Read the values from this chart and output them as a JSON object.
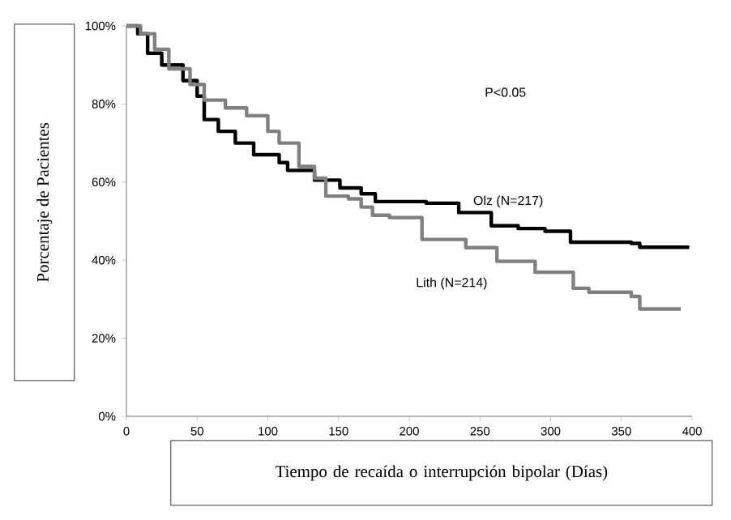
{
  "chart_data": {
    "type": "step",
    "xlabel": "Tiempo de recaída o interrupción bipolar (Días)",
    "ylabel": "Porcentaje de Pacientes",
    "annotations": [
      "P<0.05"
    ],
    "series": [
      {
        "name": "Olz (N=217)",
        "color": "#000000",
        "x": [
          0,
          8,
          15,
          25,
          40,
          50,
          55,
          65,
          77,
          90,
          108,
          114,
          133,
          151,
          166,
          176,
          212,
          235,
          258,
          277,
          296,
          314,
          357,
          363,
          398
        ],
        "values": [
          100,
          98,
          93,
          90,
          86,
          82,
          76,
          73,
          70,
          67,
          65,
          63,
          60.5,
          58.5,
          57,
          55,
          54.6,
          52.2,
          48.8,
          48.1,
          47.4,
          44.6,
          44.3,
          43.3,
          43.3
        ]
      },
      {
        "name": "Lith (N=214)",
        "color": "#808080",
        "x": [
          0,
          10,
          20,
          30,
          45,
          55,
          70,
          85,
          100,
          108,
          122,
          133,
          141,
          157,
          166,
          174,
          186,
          209,
          240,
          262,
          289,
          316,
          327,
          357,
          363,
          392
        ],
        "values": [
          100,
          98,
          94,
          89,
          85,
          81,
          79,
          77,
          73,
          70,
          64,
          61,
          56.4,
          55.7,
          53.6,
          51.5,
          50.9,
          45.3,
          43.2,
          39.7,
          36.9,
          32.8,
          31.8,
          30.7,
          27.5,
          27.5
        ]
      }
    ],
    "xlim": [
      0,
      400
    ],
    "xticks": [
      0,
      50,
      100,
      150,
      200,
      250,
      300,
      350,
      400
    ],
    "ylim": [
      0,
      100
    ],
    "yticks": [
      {
        "value": 0,
        "label": "0%"
      },
      {
        "value": 20,
        "label": "20%"
      },
      {
        "value": 40,
        "label": "40%"
      },
      {
        "value": 60,
        "label": "60%"
      },
      {
        "value": 80,
        "label": "80%"
      },
      {
        "value": 100,
        "label": "100%"
      }
    ],
    "grid": false,
    "legend": false,
    "line_style": "solid",
    "marker": "none"
  }
}
